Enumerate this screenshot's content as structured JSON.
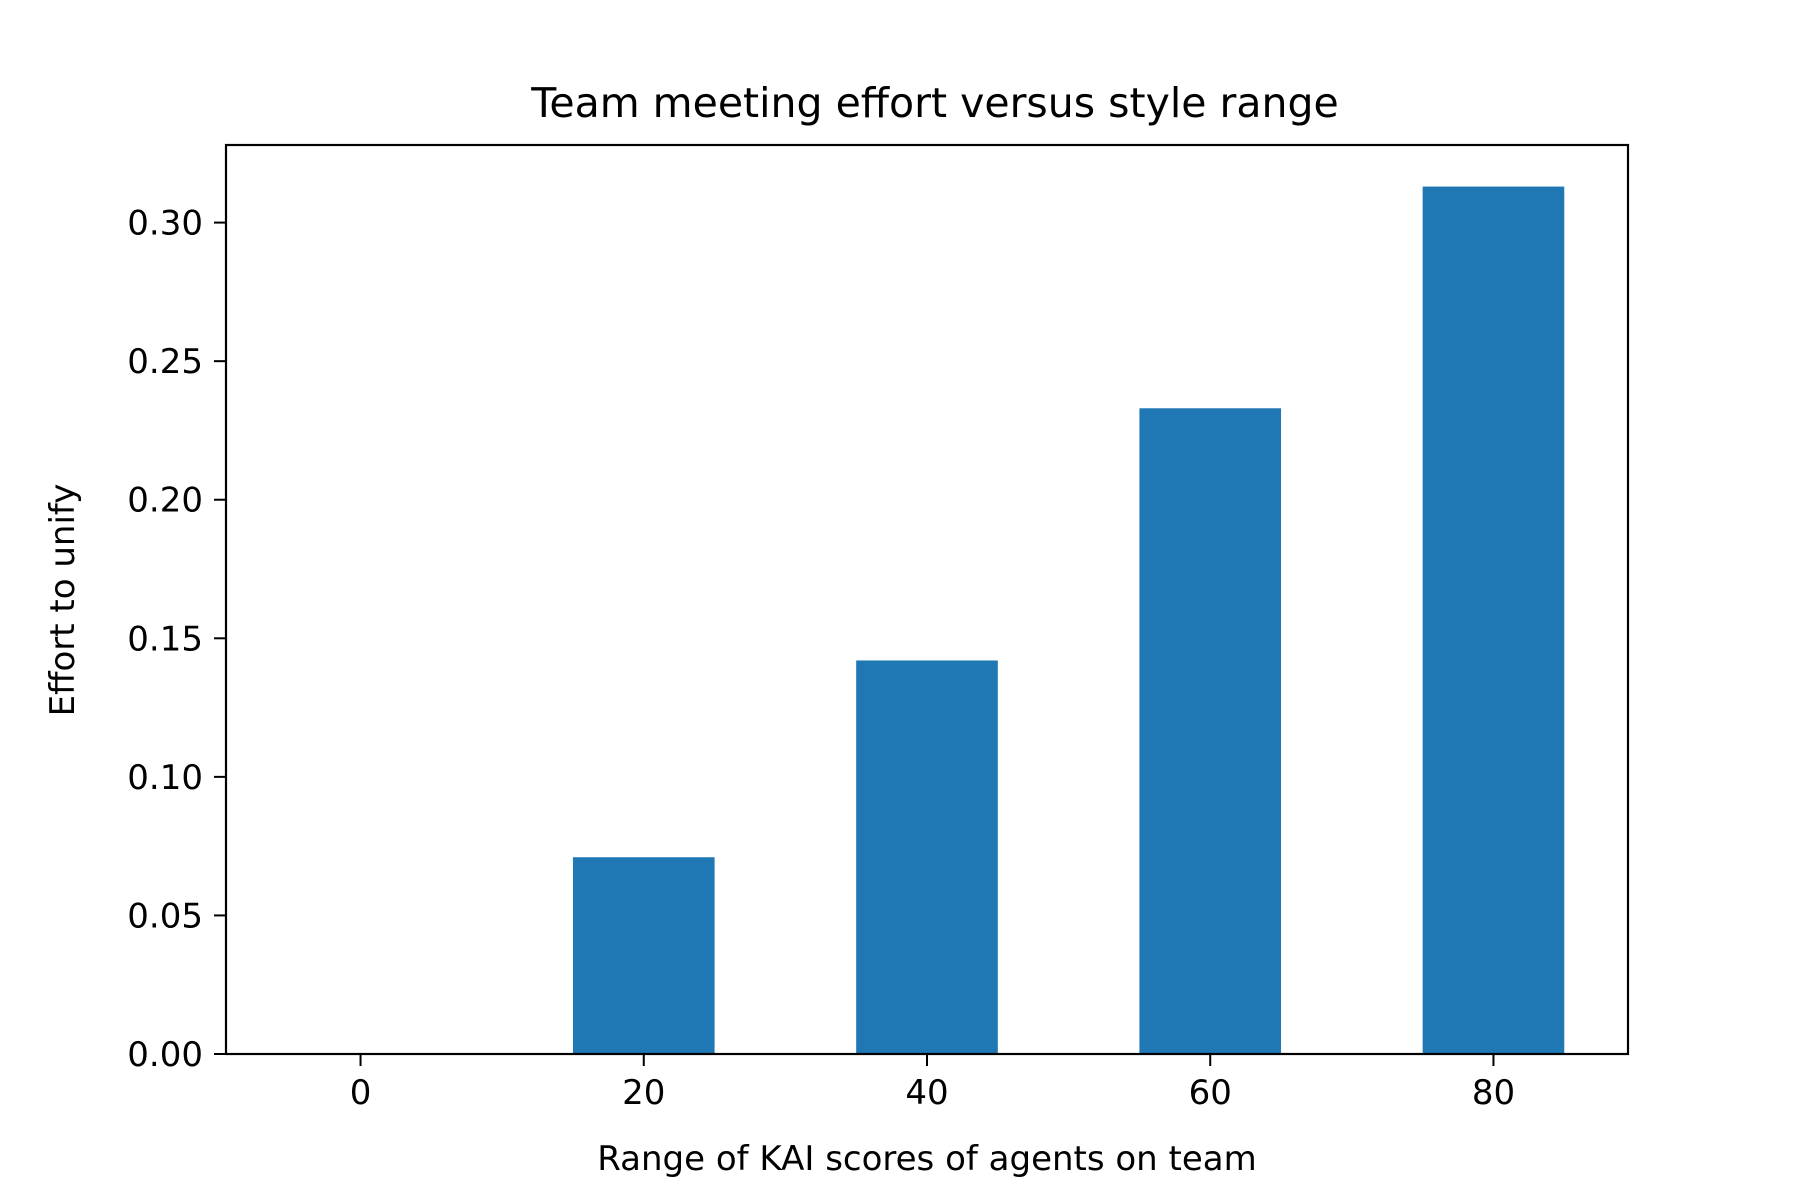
{
  "chart_data": {
    "type": "bar",
    "title": "Team meeting effort versus style range",
    "xlabel": "Range of KAI scores of agents on team",
    "ylabel": "Effort to unify",
    "x": [
      0,
      20,
      40,
      60,
      80
    ],
    "values": [
      0.0,
      0.071,
      0.142,
      0.233,
      0.313
    ],
    "bar_width": 10,
    "xlim": [
      -9.5,
      89.5
    ],
    "ylim": [
      0,
      0.328
    ],
    "xticks": [
      0,
      20,
      40,
      60,
      80
    ],
    "xtick_labels": [
      "0",
      "20",
      "40",
      "60",
      "80"
    ],
    "yticks": [
      0,
      0.05,
      0.1,
      0.15,
      0.2,
      0.25,
      0.3
    ],
    "ytick_labels": [
      "0.00",
      "0.05",
      "0.10",
      "0.15",
      "0.20",
      "0.25",
      "0.30"
    ],
    "grid": false,
    "legend": "none",
    "bar_color": "#1f77b4"
  }
}
